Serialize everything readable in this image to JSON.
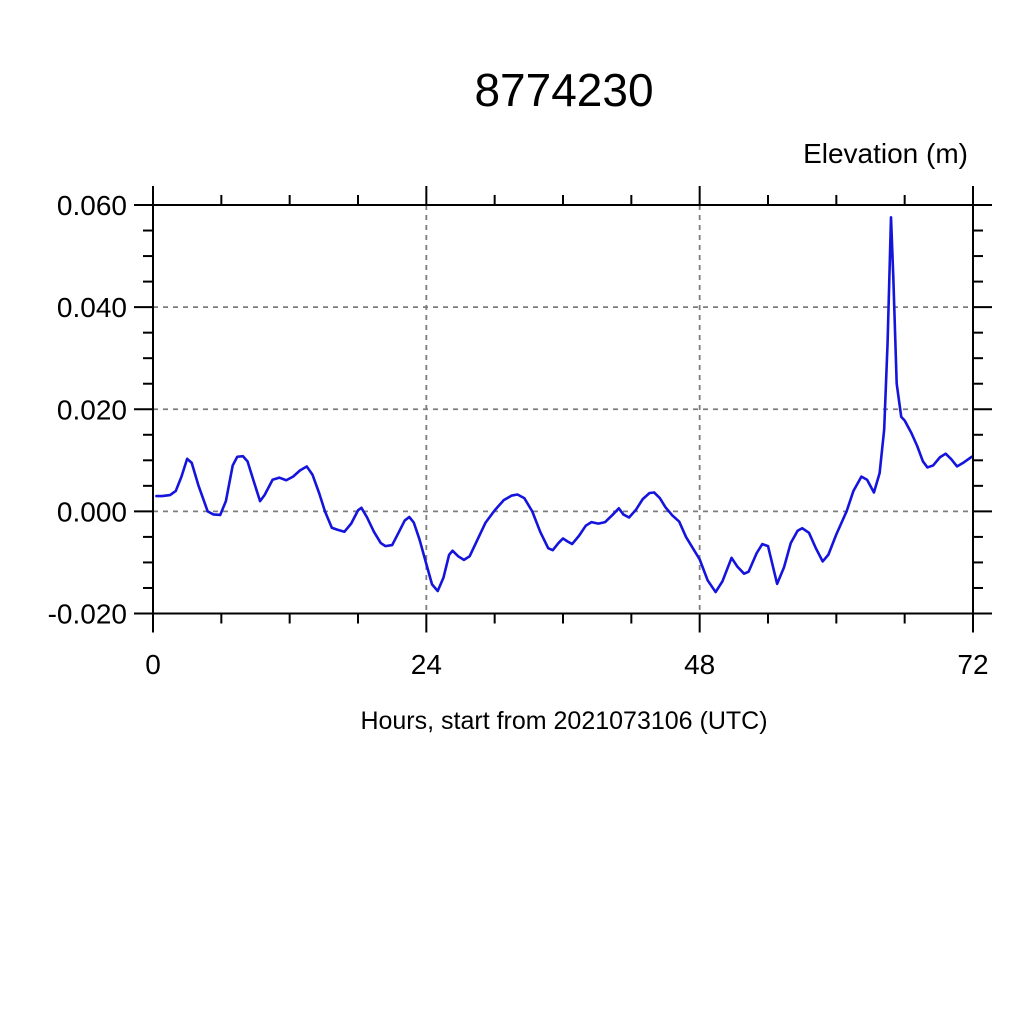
{
  "page": {
    "background_color": "#ffffff"
  },
  "chart_data": {
    "type": "line",
    "title": "8774230",
    "y_axis_label": "Elevation (m)",
    "x_axis_label": "Hours, start from 2021073106 (UTC)",
    "xlim": [
      0,
      72
    ],
    "ylim": [
      -0.02,
      0.06
    ],
    "x_ticks_major": [
      0,
      24,
      48,
      72
    ],
    "x_tick_labels": [
      "0",
      "24",
      "48",
      "72"
    ],
    "x_minor_interval": 6,
    "y_ticks_major": [
      0.06,
      0.04,
      0.02,
      0.0,
      -0.02
    ],
    "y_tick_labels": [
      "0.060",
      "0.040",
      "0.020",
      "0.000",
      "-0.020"
    ],
    "y_minor_interval": 0.005,
    "grid": "dashed",
    "legend": "none",
    "line_color": "#1414dd",
    "grid_color": "#7d7d7d",
    "frame_color": "#000000",
    "series": [
      {
        "name": "elevation",
        "x": [
          0.3,
          0.8,
          1.5,
          2.0,
          2.5,
          3.0,
          3.4,
          4.0,
          4.8,
          5.3,
          5.9,
          6.4,
          7.0,
          7.4,
          7.9,
          8.3,
          8.9,
          9.4,
          9.8,
          10.5,
          11.1,
          11.7,
          12.3,
          12.9,
          13.5,
          14.0,
          14.6,
          15.1,
          15.7,
          16.2,
          16.8,
          17.4,
          18.0,
          18.3,
          18.8,
          19.4,
          20.0,
          20.4,
          21.0,
          21.6,
          22.1,
          22.5,
          22.9,
          23.4,
          24.0,
          24.5,
          25.0,
          25.5,
          26.0,
          26.3,
          26.8,
          27.3,
          27.8,
          28.5,
          29.2,
          30.0,
          30.8,
          31.5,
          32.0,
          32.6,
          33.3,
          34.0,
          34.7,
          35.1,
          35.6,
          36.0,
          36.4,
          36.8,
          37.4,
          38.0,
          38.5,
          39.1,
          39.7,
          40.3,
          40.9,
          41.3,
          41.8,
          42.4,
          43.0,
          43.6,
          44.0,
          44.5,
          45.0,
          45.6,
          46.2,
          46.8,
          47.4,
          48.0,
          48.7,
          49.4,
          50.0,
          50.8,
          51.3,
          51.9,
          52.3,
          53.0,
          53.5,
          54.0,
          54.4,
          54.8,
          55.4,
          56.0,
          56.6,
          57.0,
          57.6,
          58.2,
          58.8,
          59.3,
          60.0,
          60.9,
          61.5,
          62.2,
          62.7,
          63.3,
          63.8,
          64.2,
          64.5,
          64.8,
          65.0,
          65.3,
          65.7,
          66.0,
          66.6,
          67.1,
          67.6,
          68.0,
          68.5,
          69.1,
          69.6,
          70.1,
          70.6,
          71.2,
          71.9
        ],
        "y": [
          0.003,
          0.003,
          0.0032,
          0.004,
          0.0068,
          0.0103,
          0.0095,
          0.005,
          0.0,
          -0.0006,
          -0.0007,
          0.002,
          0.009,
          0.0107,
          0.0108,
          0.0098,
          0.0055,
          0.002,
          0.0032,
          0.0062,
          0.0066,
          0.0061,
          0.0068,
          0.008,
          0.0088,
          0.0072,
          0.0035,
          0.0,
          -0.0032,
          -0.0036,
          -0.004,
          -0.0024,
          0.0002,
          0.0007,
          -0.0012,
          -0.004,
          -0.0062,
          -0.0068,
          -0.0066,
          -0.004,
          -0.0018,
          -0.0011,
          -0.0022,
          -0.0055,
          -0.0103,
          -0.0143,
          -0.0156,
          -0.013,
          -0.0085,
          -0.0077,
          -0.0088,
          -0.0095,
          -0.0088,
          -0.0055,
          -0.0022,
          0.0002,
          0.0022,
          0.0031,
          0.0033,
          0.0026,
          0.0,
          -0.004,
          -0.0072,
          -0.0076,
          -0.0062,
          -0.0053,
          -0.0059,
          -0.0064,
          -0.0048,
          -0.0028,
          -0.0021,
          -0.0024,
          -0.0021,
          -0.0008,
          0.0006,
          -0.0006,
          -0.0012,
          0.0003,
          0.0024,
          0.0036,
          0.0037,
          0.0026,
          0.0008,
          -0.0008,
          -0.002,
          -0.005,
          -0.0072,
          -0.0094,
          -0.0135,
          -0.0158,
          -0.0137,
          -0.0091,
          -0.0108,
          -0.0122,
          -0.0118,
          -0.0082,
          -0.0064,
          -0.0068,
          -0.0105,
          -0.0142,
          -0.011,
          -0.0062,
          -0.0038,
          -0.0033,
          -0.0042,
          -0.0072,
          -0.0098,
          -0.0085,
          -0.0045,
          0.0,
          0.004,
          0.0068,
          0.0062,
          0.0037,
          0.0075,
          0.016,
          0.033,
          0.0576,
          0.046,
          0.025,
          0.0185,
          0.0178,
          0.0153,
          0.0128,
          0.0098,
          0.0086,
          0.009,
          0.0106,
          0.0113,
          0.0102,
          0.0088,
          0.0096,
          0.0107
        ]
      }
    ]
  }
}
